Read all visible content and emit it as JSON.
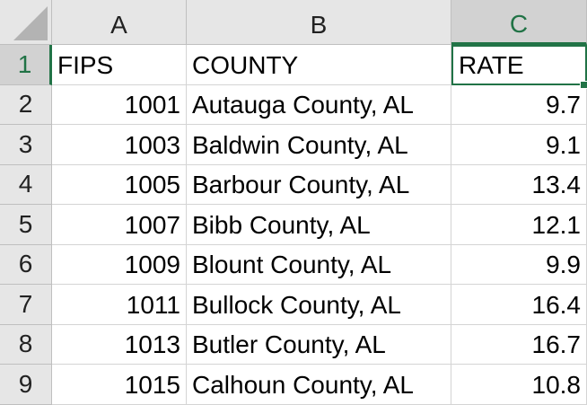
{
  "sheet": {
    "columns": [
      "A",
      "B",
      "C"
    ],
    "active_column": "C",
    "active_row": "1",
    "rows": [
      {
        "num": "1",
        "cells": [
          "FIPS",
          "COUNTY",
          "RATE"
        ]
      },
      {
        "num": "2",
        "cells": [
          "1001",
          "Autauga County, AL",
          "9.7"
        ]
      },
      {
        "num": "3",
        "cells": [
          "1003",
          "Baldwin County, AL",
          "9.1"
        ]
      },
      {
        "num": "4",
        "cells": [
          "1005",
          "Barbour County, AL",
          "13.4"
        ]
      },
      {
        "num": "5",
        "cells": [
          "1007",
          "Bibb County, AL",
          "12.1"
        ]
      },
      {
        "num": "6",
        "cells": [
          "1009",
          "Blount County, AL",
          "9.9"
        ]
      },
      {
        "num": "7",
        "cells": [
          "1011",
          "Bullock County, AL",
          "16.4"
        ]
      },
      {
        "num": "8",
        "cells": [
          "1013",
          "Butler County, AL",
          "16.7"
        ]
      },
      {
        "num": "9",
        "cells": [
          "1015",
          "Calhoun County, AL",
          "10.8"
        ]
      }
    ]
  },
  "colors": {
    "accent": "#217346",
    "header_bg": "#e6e6e6",
    "active_header_bg": "#d2d2d2"
  }
}
